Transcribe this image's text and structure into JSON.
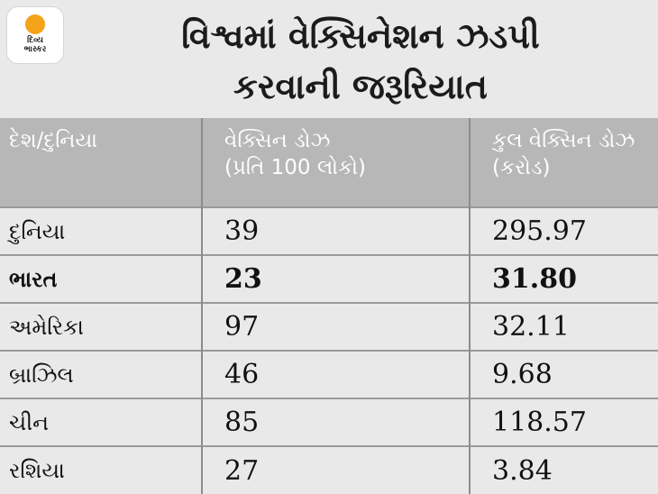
{
  "logo": {
    "brand_line1": "દિવ્ય",
    "brand_line2": "ભાસ્કર"
  },
  "title": {
    "line1": "વિશ્વમાં વેક્સિનેશન ઝડપી",
    "line2": "કરવાની જરૂરિયાત"
  },
  "table": {
    "headers": [
      {
        "line1": "દેશ/દુનિયા",
        "line2": ""
      },
      {
        "line1": "વેક્સિન ડોઝ",
        "line2": "(પ્રતિ 100 લોકો)"
      },
      {
        "line1": "કુલ વેક્સિન ડોઝ",
        "line2": "(કરોડ)"
      }
    ],
    "rows": [
      {
        "name": "દુનિયા",
        "per100": "39",
        "total": "295.97",
        "bold": false
      },
      {
        "name": "ભારત",
        "per100": "23",
        "total": "31.80",
        "bold": true
      },
      {
        "name": "અમેરિકા",
        "per100": "97",
        "total": "32.11",
        "bold": false
      },
      {
        "name": "બ્રાઝિલ",
        "per100": "46",
        "total": "9.68",
        "bold": false
      },
      {
        "name": "ચીન",
        "per100": "85",
        "total": "118.57",
        "bold": false
      },
      {
        "name": "રશિયા",
        "per100": "27",
        "total": "3.84",
        "bold": false
      }
    ]
  }
}
